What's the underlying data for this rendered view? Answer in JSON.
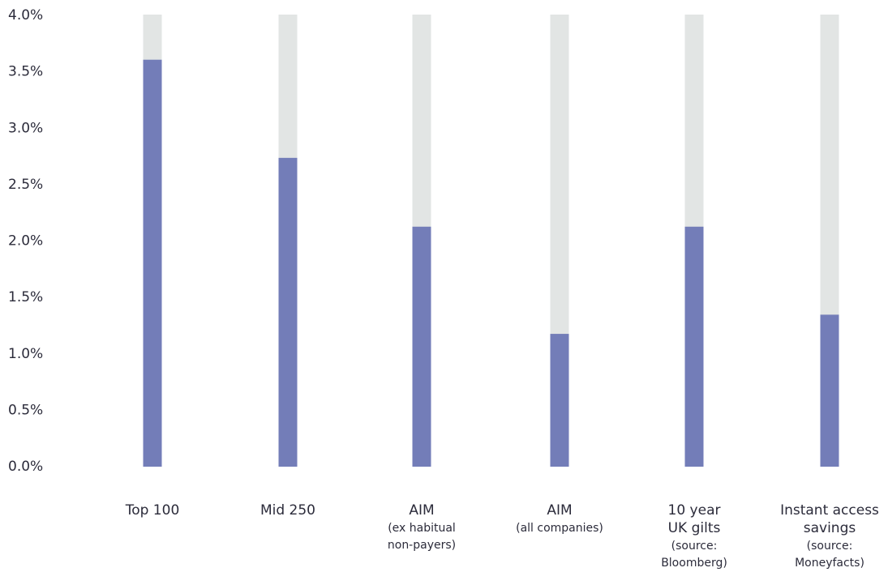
{
  "chart_data": {
    "type": "bar",
    "y_tick_labels": [
      "0.0%",
      "0.5%",
      "1.0%",
      "1.5%",
      "2.0%",
      "2.5%",
      "3.0%",
      "3.5%",
      "4.0%"
    ],
    "ylim": [
      0,
      4.0
    ],
    "grid": false,
    "legend": "none",
    "categories": [
      {
        "label": "Top 100",
        "sublabel": []
      },
      {
        "label": "Mid 250",
        "sublabel": []
      },
      {
        "label": "AIM",
        "sublabel": [
          "(ex habitual",
          "non-payers)"
        ]
      },
      {
        "label": "AIM",
        "sublabel": [
          "(all companies)"
        ]
      },
      {
        "label": "10 year",
        "label2": "UK gilts",
        "sublabel": [
          "(source:",
          "Bloomberg)"
        ]
      },
      {
        "label": "Instant access",
        "label2": "savings",
        "sublabel": [
          "(source:",
          "Moneyfacts)"
        ]
      }
    ],
    "values": [
      3.6,
      2.73,
      2.12,
      1.17,
      2.12,
      1.34
    ],
    "colors": {
      "bar": "#737db8",
      "track": "#e2e5e4",
      "text": "#2b2b3a"
    }
  }
}
